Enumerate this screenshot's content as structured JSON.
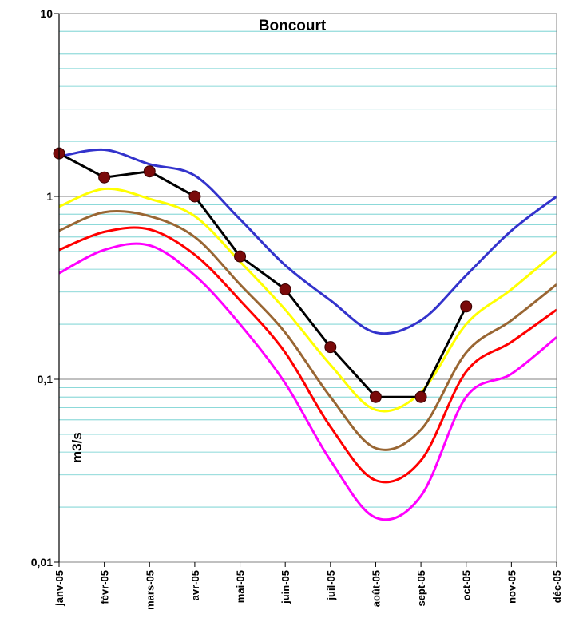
{
  "chart_data": {
    "type": "line",
    "title": "Boncourt",
    "ylabel": "m3/s",
    "xlabel": "",
    "y_scale": "log",
    "ylim": [
      0.01,
      10
    ],
    "y_ticks": [
      "0,01",
      "0,1",
      "1",
      "10"
    ],
    "y_tick_values": [
      0.01,
      0.1,
      1,
      10
    ],
    "categories": [
      "janv-05",
      "févr-05",
      "mars-05",
      "avr-05",
      "mai-05",
      "juin-05",
      "juil-05",
      "août-05",
      "sept-05",
      "oct-05",
      "nov-05",
      "déc-05"
    ],
    "grid": "minor horizontal gridlines (cyan), major decade gridlines (gray)",
    "plot_background": "#ffffff",
    "series": [
      {
        "color": "#3333cc",
        "style": "smooth",
        "values": [
          1.65,
          1.8,
          1.5,
          1.3,
          0.75,
          0.42,
          0.27,
          0.18,
          0.21,
          0.37,
          0.65,
          1.0
        ]
      },
      {
        "color": "#ffff00",
        "style": "smooth",
        "values": [
          0.88,
          1.1,
          0.97,
          0.78,
          0.44,
          0.24,
          0.12,
          0.068,
          0.085,
          0.2,
          0.31,
          0.5
        ]
      },
      {
        "color": "#996633",
        "style": "smooth",
        "values": [
          0.65,
          0.82,
          0.78,
          0.6,
          0.33,
          0.18,
          0.08,
          0.042,
          0.053,
          0.14,
          0.21,
          0.33
        ]
      },
      {
        "color": "#ff0000",
        "style": "smooth",
        "values": [
          0.51,
          0.64,
          0.66,
          0.48,
          0.27,
          0.14,
          0.055,
          0.028,
          0.036,
          0.11,
          0.16,
          0.24
        ]
      },
      {
        "color": "#ff00ff",
        "style": "smooth",
        "values": [
          0.38,
          0.51,
          0.54,
          0.37,
          0.2,
          0.095,
          0.036,
          0.0175,
          0.023,
          0.08,
          0.107,
          0.17
        ]
      },
      {
        "color": "#000000",
        "marker_color": "#7a0a0a",
        "style": "markers",
        "values": [
          1.72,
          1.27,
          1.37,
          1.0,
          0.47,
          0.31,
          0.15,
          0.08,
          0.08,
          0.25,
          null,
          null
        ]
      }
    ]
  }
}
